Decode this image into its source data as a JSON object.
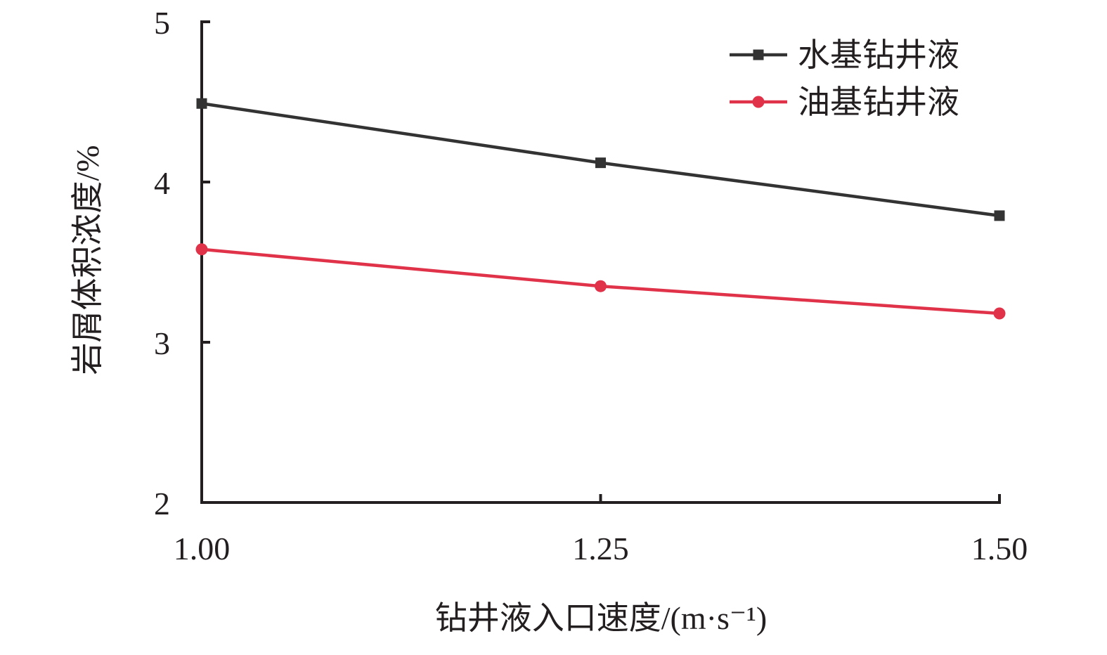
{
  "chart_data": {
    "type": "line",
    "title": "",
    "xlabel": "钻井液入口速度/(m·s⁻¹)",
    "ylabel": "岩屑体积浓度/%",
    "x": [
      1.0,
      1.25,
      1.5
    ],
    "x_tick_labels": [
      "1.00",
      "1.25",
      "1.50"
    ],
    "ylim": [
      2,
      5
    ],
    "y_ticks": [
      2,
      3,
      4,
      5
    ],
    "y_tick_labels": [
      "2",
      "3",
      "4",
      "5"
    ],
    "grid": false,
    "legend_position": "top-right",
    "series": [
      {
        "name": "水基钻井液",
        "values": [
          4.49,
          4.12,
          3.79
        ],
        "color": "#333333",
        "marker": "square"
      },
      {
        "name": "油基钻井液",
        "values": [
          3.58,
          3.35,
          3.18
        ],
        "color": "#e0334a",
        "marker": "circle"
      }
    ]
  }
}
